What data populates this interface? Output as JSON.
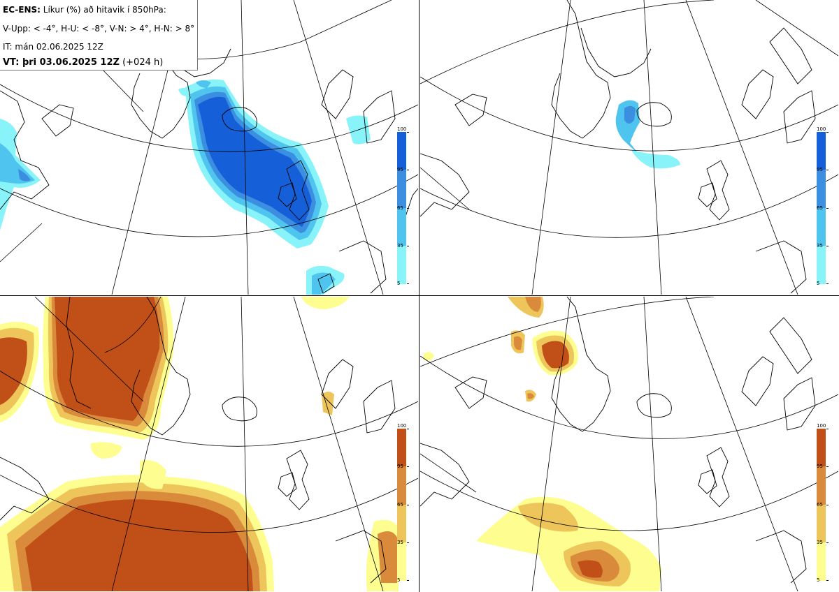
{
  "header": {
    "product_label": "EC-ENS:",
    "product_title": "Líkur (%) að hitavik í 850hPa:",
    "classes": "V-Upp: < -4°, H-U: < -8°, V-N: > 4°, H-N: > 8°",
    "init_time": "IT: mán 02.06.2025 12Z",
    "valid_label": "VT: þri 03.06.2025 12Z",
    "lead_time": "(+024 h)"
  },
  "colorbar": {
    "ticks": [
      "100",
      "95",
      "65",
      "35",
      "5"
    ],
    "cold_colors": [
      "#1560d8",
      "#3b8ee0",
      "#4ec4ee",
      "#88f3f8"
    ],
    "warm_colors": [
      "#c04f18",
      "#d98a3a",
      "#eec55a",
      "#fefe90"
    ]
  },
  "panels": [
    {
      "id": "V-Upp",
      "palette": "cold"
    },
    {
      "id": "H-U",
      "palette": "cold"
    },
    {
      "id": "V-N",
      "palette": "warm"
    },
    {
      "id": "H-N",
      "palette": "warm"
    }
  ]
}
